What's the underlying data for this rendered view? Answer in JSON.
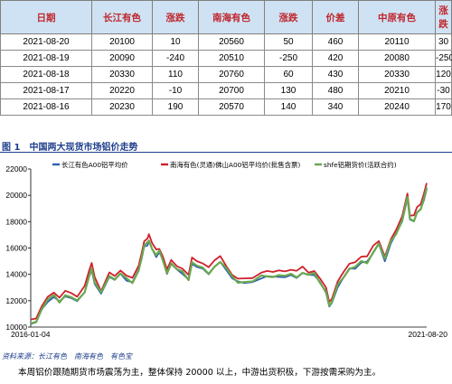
{
  "table": {
    "headers": [
      "日期",
      "长江有色",
      "涨跌",
      "南海有色",
      "涨跌",
      "价差",
      "中原有色",
      "涨跌"
    ],
    "rows": [
      [
        "2021-08-20",
        "20100",
        "10",
        "20560",
        "50",
        "460",
        "20110",
        "30"
      ],
      [
        "2021-08-19",
        "20090",
        "-240",
        "20510",
        "-250",
        "420",
        "20080",
        "-250"
      ],
      [
        "2021-08-18",
        "20330",
        "110",
        "20760",
        "60",
        "430",
        "20330",
        "120"
      ],
      [
        "2021-08-17",
        "20220",
        "-10",
        "20700",
        "130",
        "480",
        "20210",
        "-30"
      ],
      [
        "2021-08-16",
        "20230",
        "190",
        "20570",
        "140",
        "340",
        "20240",
        "170"
      ]
    ]
  },
  "figure": {
    "number": "图 1",
    "title": "中国两大现货市场铝价走势"
  },
  "source": {
    "label": "资料来源：",
    "items": [
      "长江有色",
      "南海有色",
      "有色宝"
    ]
  },
  "commentary": "本周铝价跟随期货市场震荡为主，整体保持 20000 以上，中游出货积极，下游按需采购为主。",
  "colors": {
    "header_bg": "#cfe2f3",
    "header_text": "#c0262d",
    "figure_title": "#1e3e8c",
    "series_changjiang": "#2f5fb3",
    "series_nanhai": "#d0202a",
    "series_shfe": "#6aa84f"
  },
  "chart_data": {
    "type": "line",
    "x_start": "2016-01-04",
    "x_end": "2021-08-20",
    "x_tick_labels": [
      "2016-01-04",
      "2021-08-20"
    ],
    "ylim": [
      10000,
      22000
    ],
    "yticks": [
      10000,
      12000,
      14000,
      16000,
      18000,
      20000,
      22000
    ],
    "grid": false,
    "legend_position": "top",
    "series": [
      {
        "name": "长江有色A00铝平均价",
        "color": "#2f5fb3"
      },
      {
        "name": "南海有色(灵通)佛山A00铝平均价(批售含票)",
        "color": "#d0202a"
      },
      {
        "name": "shfe铝期货价(活跃合约)",
        "color": "#6aa84f"
      }
    ],
    "points": [
      [
        "2016-01-04",
        10450
      ],
      [
        "2016-02-01",
        10500
      ],
      [
        "2016-03-01",
        11400
      ],
      [
        "2016-04-01",
        12100
      ],
      [
        "2016-05-03",
        12400
      ],
      [
        "2016-06-01",
        12000
      ],
      [
        "2016-07-01",
        12500
      ],
      [
        "2016-08-01",
        12300
      ],
      [
        "2016-09-01",
        12000
      ],
      [
        "2016-10-10",
        12800
      ],
      [
        "2016-11-01",
        13900
      ],
      [
        "2016-11-15",
        14500
      ],
      [
        "2016-12-01",
        13400
      ],
      [
        "2017-01-03",
        12600
      ],
      [
        "2017-02-15",
        14000
      ],
      [
        "2017-03-15",
        13700
      ],
      [
        "2017-04-14",
        14100
      ],
      [
        "2017-05-15",
        13700
      ],
      [
        "2017-06-15",
        13500
      ],
      [
        "2017-07-17",
        14400
      ],
      [
        "2017-08-01",
        15300
      ],
      [
        "2017-08-15",
        16200
      ],
      [
        "2017-09-01",
        16400
      ],
      [
        "2017-09-08",
        16700
      ],
      [
        "2017-09-25",
        16000
      ],
      [
        "2017-10-16",
        15500
      ],
      [
        "2017-11-01",
        15800
      ],
      [
        "2017-11-20",
        15200
      ],
      [
        "2017-12-11",
        14200
      ],
      [
        "2018-01-02",
        14900
      ],
      [
        "2018-02-01",
        14400
      ],
      [
        "2018-03-01",
        14200
      ],
      [
        "2018-04-02",
        13700
      ],
      [
        "2018-04-20",
        15000
      ],
      [
        "2018-05-15",
        14700
      ],
      [
        "2018-06-15",
        14500
      ],
      [
        "2018-07-16",
        14200
      ],
      [
        "2018-08-15",
        14700
      ],
      [
        "2018-09-14",
        15000
      ],
      [
        "2018-10-15",
        14500
      ],
      [
        "2018-11-15",
        13800
      ],
      [
        "2018-12-14",
        13500
      ],
      [
        "2019-01-15",
        13500
      ],
      [
        "2019-03-01",
        13500
      ],
      [
        "2019-04-15",
        13900
      ],
      [
        "2019-05-15",
        14000
      ],
      [
        "2019-06-14",
        13900
      ],
      [
        "2019-07-15",
        14000
      ],
      [
        "2019-08-15",
        13900
      ],
      [
        "2019-09-16",
        14000
      ],
      [
        "2019-10-15",
        13900
      ],
      [
        "2019-11-15",
        14200
      ],
      [
        "2019-12-16",
        14000
      ],
      [
        "2020-01-15",
        14100
      ],
      [
        "2020-02-14",
        13500
      ],
      [
        "2020-03-16",
        12800
      ],
      [
        "2020-04-01",
        11700
      ],
      [
        "2020-04-15",
        11900
      ],
      [
        "2020-05-15",
        13200
      ],
      [
        "2020-06-15",
        13900
      ],
      [
        "2020-07-15",
        14500
      ],
      [
        "2020-08-14",
        14600
      ],
      [
        "2020-09-15",
        15000
      ],
      [
        "2020-10-15",
        15000
      ],
      [
        "2020-11-16",
        15800
      ],
      [
        "2020-12-15",
        16400
      ],
      [
        "2021-01-15",
        15200
      ],
      [
        "2021-02-15",
        16500
      ],
      [
        "2021-03-15",
        17200
      ],
      [
        "2021-04-15",
        18200
      ],
      [
        "2021-05-12",
        19900
      ],
      [
        "2021-05-25",
        18200
      ],
      [
        "2021-06-15",
        18200
      ],
      [
        "2021-07-01",
        18800
      ],
      [
        "2021-07-20",
        19000
      ],
      [
        "2021-08-06",
        19800
      ],
      [
        "2021-08-20",
        20560
      ]
    ]
  }
}
